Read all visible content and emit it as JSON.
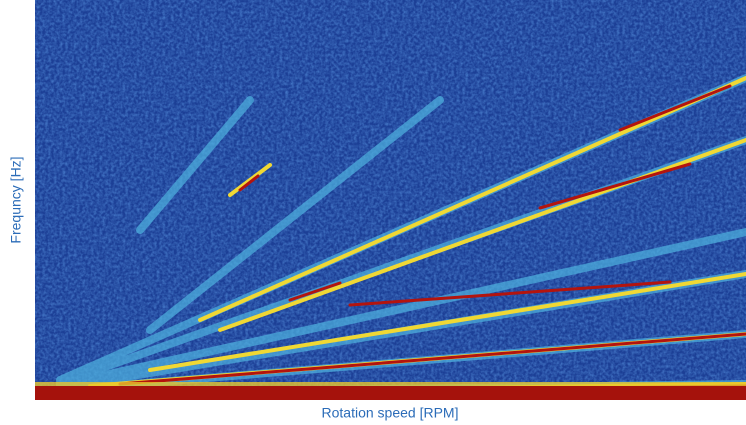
{
  "chart_data": {
    "type": "spectrogram",
    "x_label": "Rotation speed [RPM]",
    "y_label": "Frequncy [Hz]"
  }
}
